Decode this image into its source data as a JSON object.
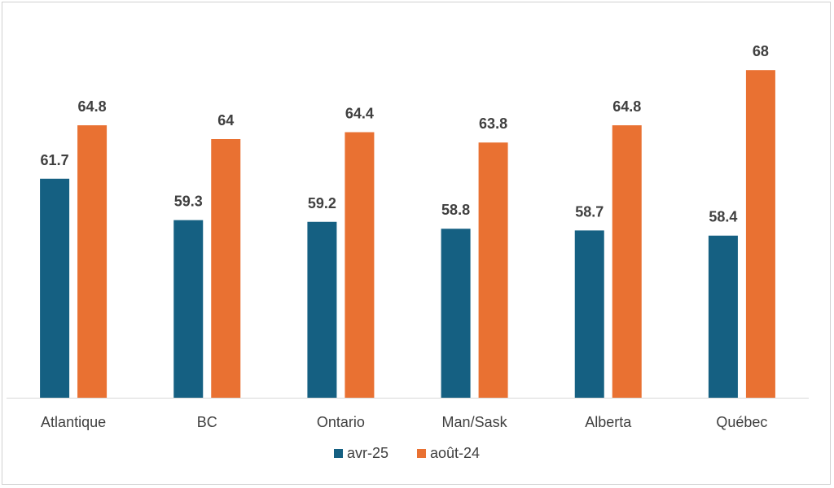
{
  "chart_data": {
    "type": "bar",
    "categories": [
      "Atlantique",
      "BC",
      "Ontario",
      "Man/Sask",
      "Alberta",
      "Québec"
    ],
    "series": [
      {
        "name": "avr-25",
        "values": [
          61.7,
          59.3,
          59.2,
          58.8,
          58.7,
          58.4
        ],
        "labels": [
          "61.7",
          "59.3",
          "59.2",
          "58.8",
          "58.7",
          "58.4"
        ],
        "color": "#156082"
      },
      {
        "name": "août-24",
        "values": [
          64.8,
          64,
          64.4,
          63.8,
          64.8,
          68
        ],
        "labels": [
          "64.8",
          "64",
          "64.4",
          "63.8",
          "64.8",
          "68"
        ],
        "color": "#E97132"
      }
    ],
    "ylim": [
      49,
      69
    ],
    "grid": false,
    "legend": "bottom",
    "data_labels": true
  }
}
